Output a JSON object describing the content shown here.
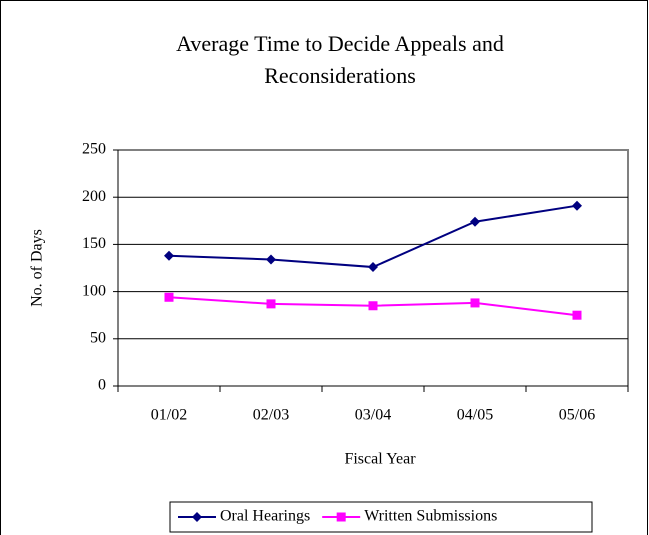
{
  "chart_data": {
    "type": "line",
    "title": "Average Time to Decide Appeals and Reconsiderations",
    "xlabel": "Fiscal Year",
    "ylabel": "No. of Days",
    "categories": [
      "01/02",
      "02/03",
      "03/04",
      "04/05",
      "05/06"
    ],
    "series": [
      {
        "name": "Oral Hearings",
        "color": "#000080",
        "marker": "diamond",
        "values": [
          138,
          134,
          126,
          174,
          191
        ]
      },
      {
        "name": "Written Submissions",
        "color": "#ff00ff",
        "marker": "square",
        "values": [
          94,
          87,
          85,
          88,
          75
        ]
      }
    ],
    "ylim": [
      0,
      250
    ],
    "yticks": [
      0,
      50,
      100,
      150,
      200,
      250
    ],
    "grid": true,
    "legend": "bottom"
  }
}
